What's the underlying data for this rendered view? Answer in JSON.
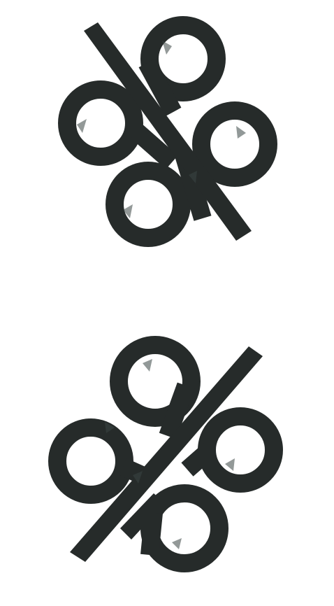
{
  "colors": {
    "background": "#ffffff",
    "mark": "#262b2a",
    "texture": "#3a4644"
  },
  "logo_marks": [
    {
      "name": "logo-mark-top",
      "icon": "clover-letterform-logo"
    },
    {
      "name": "logo-mark-bottom",
      "icon": "clover-letterform-logo-mirrored"
    }
  ]
}
